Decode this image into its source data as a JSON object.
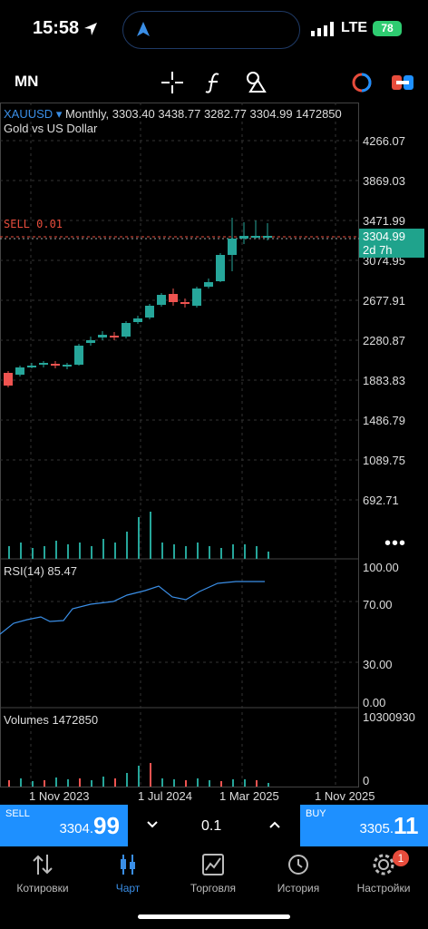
{
  "status": {
    "time": "15:58",
    "network": "LTE",
    "battery": "78"
  },
  "toolbar": {
    "timeframe": "MN"
  },
  "chart": {
    "symbol": "XAUUSD",
    "info": "Monthly, 3303.40 3438.77 3282.77 3304.99 1472850",
    "description": "Gold vs US Dollar",
    "sell_label": "SELL 0.01",
    "price_axis": [
      "4266.07",
      "3869.03",
      "3471.99",
      "3074.95",
      "2677.91",
      "2280.87",
      "1883.83",
      "1486.79",
      "1089.75",
      "692.71"
    ],
    "current_price": "3304.99",
    "time_left": "2d 7h",
    "rsi_label": "RSI(14) 85.47",
    "rsi_axis": [
      "100.00",
      "70.00",
      "30.00",
      "0.00"
    ],
    "volumes_label": "Volumes 1472850",
    "volume_axis": [
      "10300930",
      "0"
    ],
    "dates": [
      "1 Nov 2023",
      "1 Jul 2024",
      "1 Mar 2025",
      "1 Nov 2025"
    ],
    "more": "•••"
  },
  "trade": {
    "sell_label": "SELL",
    "sell_price_main": "3304.",
    "sell_price_big": "99",
    "buy_label": "BUY",
    "buy_price_main": "3305.",
    "buy_price_big": "11",
    "lots": "0.1"
  },
  "nav": {
    "items": [
      "Котировки",
      "Чарт",
      "Торговля",
      "История",
      "Настройки"
    ],
    "settings_badge": "1"
  },
  "colors": {
    "bull": "#26a69a",
    "bear": "#ef5350",
    "accent": "#1e90ff"
  }
}
